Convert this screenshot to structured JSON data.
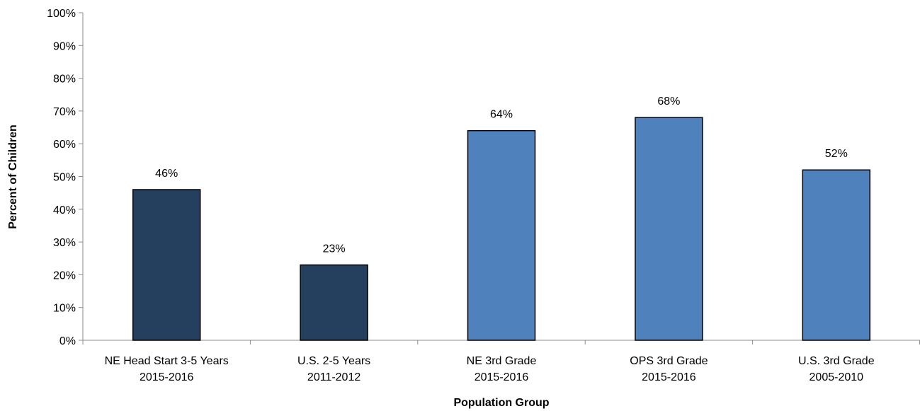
{
  "chart_data": {
    "type": "bar",
    "categories": [
      [
        "NE Head Start 3-5 Years",
        "2015-2016"
      ],
      [
        "U.S. 2-5 Years",
        "2011-2012"
      ],
      [
        "NE 3rd Grade",
        "2015-2016"
      ],
      [
        "OPS 3rd Grade",
        "2015-2016"
      ],
      [
        "U.S. 3rd Grade",
        "2005-2010"
      ]
    ],
    "values": [
      46,
      23,
      64,
      68,
      52
    ],
    "data_labels": [
      "46%",
      "23%",
      "64%",
      "68%",
      "52%"
    ],
    "bar_colors": [
      "#253f5e",
      "#253f5e",
      "#4f81bd",
      "#4f81bd",
      "#4f81bd"
    ],
    "xlabel": "Population Group",
    "ylabel": "Percent of Children",
    "ylim": [
      0,
      100
    ],
    "yticks": [
      0,
      10,
      20,
      30,
      40,
      50,
      60,
      70,
      80,
      90,
      100
    ],
    "ytick_labels": [
      "0%",
      "10%",
      "20%",
      "30%",
      "40%",
      "50%",
      "60%",
      "70%",
      "80%",
      "90%",
      "100%"
    ],
    "grid": false,
    "legend": "none"
  }
}
